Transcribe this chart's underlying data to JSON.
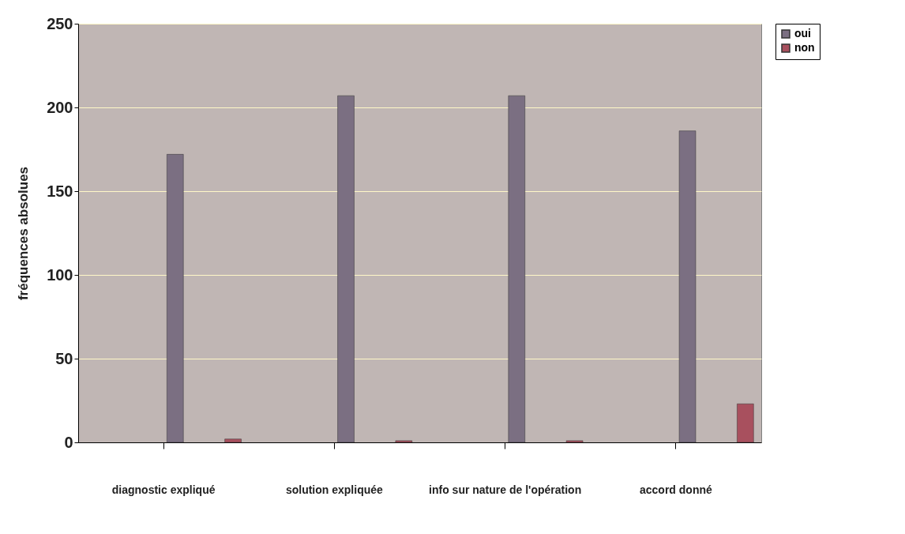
{
  "chart_data": {
    "type": "bar",
    "ylabel": "fréquences absolues",
    "categories": [
      "diagnostic expliqué",
      "solution expliquée",
      "info sur nature de l'opération",
      "accord donné"
    ],
    "series": [
      {
        "name": "oui",
        "color": "#7b6f82",
        "values": [
          172,
          207,
          207,
          186
        ]
      },
      {
        "name": "non",
        "color": "#a8505e",
        "values": [
          2,
          1,
          1,
          23
        ]
      }
    ],
    "ylim": [
      0,
      250
    ],
    "yticks": [
      0,
      50,
      100,
      150,
      200,
      250
    ],
    "grid": "y",
    "legend": "right"
  }
}
